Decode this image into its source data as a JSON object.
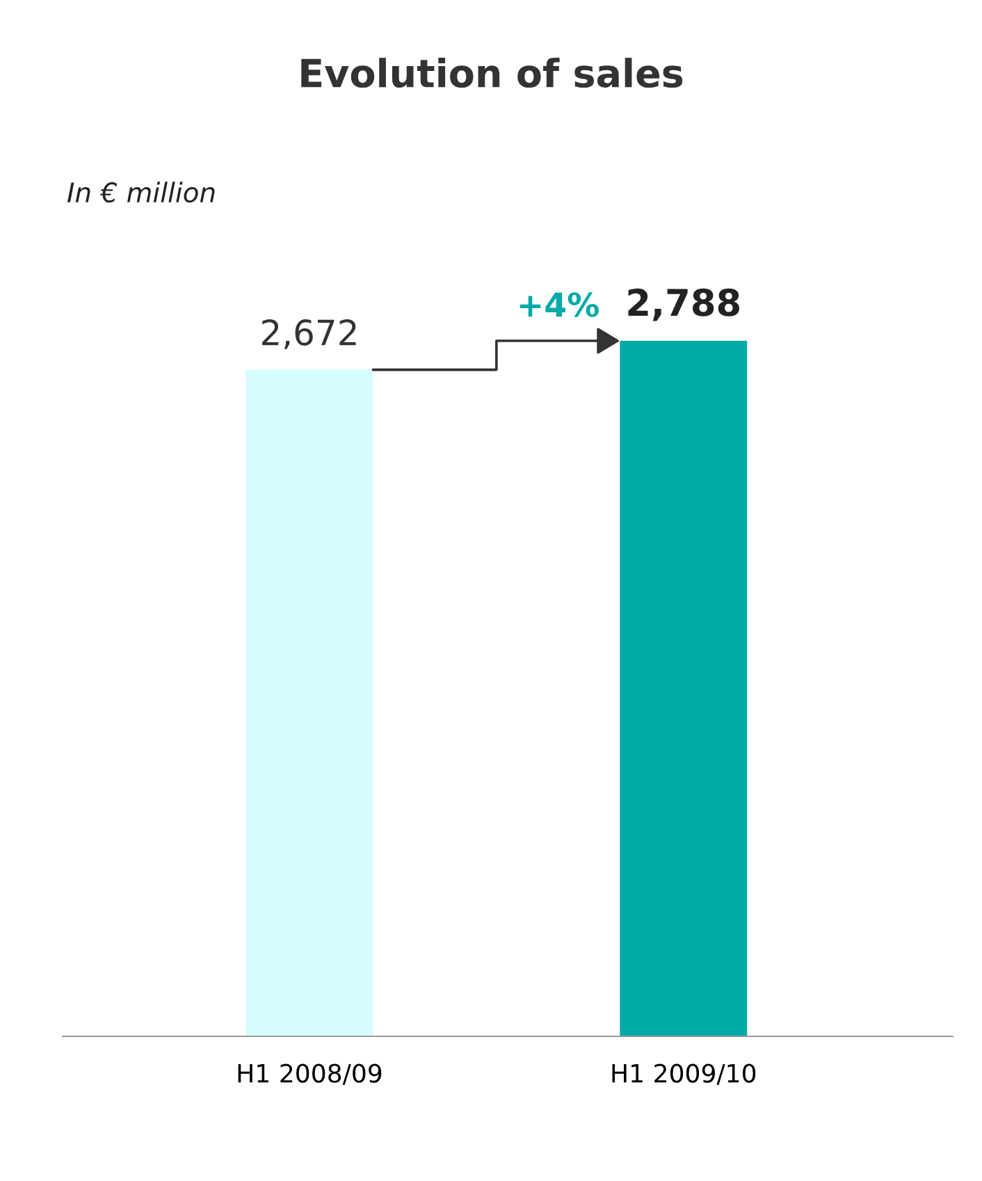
{
  "chart_data": {
    "type": "bar",
    "title": "Evolution of sales",
    "subtitle": "In € million",
    "categories": [
      "H1 2008/09",
      "H1 2009/10"
    ],
    "values": [
      2672,
      2788
    ],
    "colors": [
      "#d4fdfb",
      "#00aaa6"
    ],
    "value_labels": [
      "2,672",
      "2,788"
    ],
    "annotations": [
      "+4%"
    ],
    "grid": false,
    "legend": false
  }
}
